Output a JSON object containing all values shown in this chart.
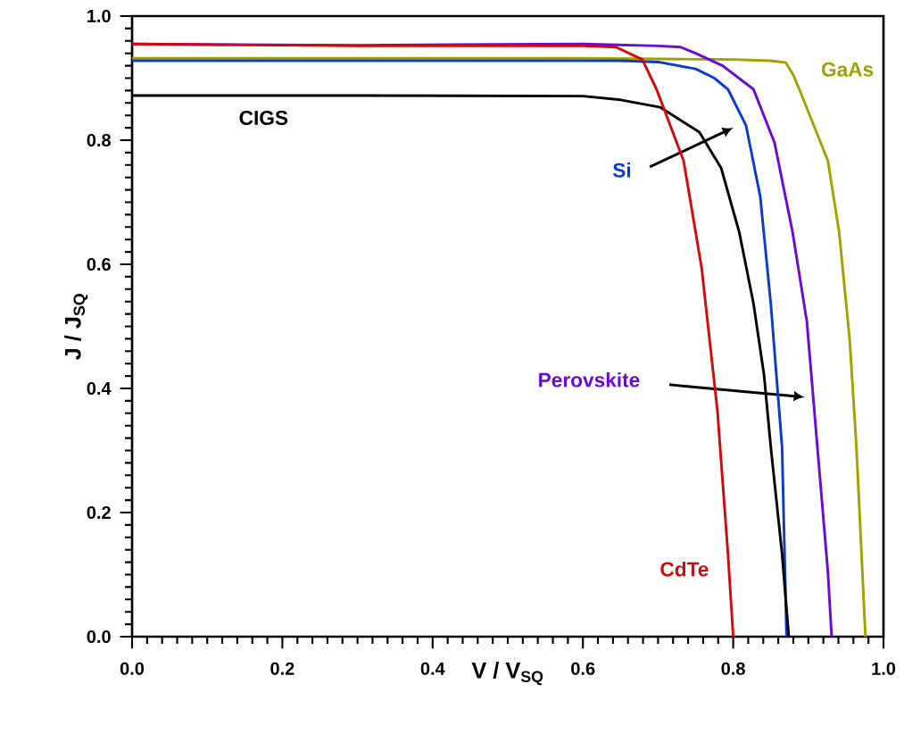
{
  "chart_data": {
    "type": "line",
    "xlabel": "V / V$_{SQ}$",
    "ylabel": "J / J$_{SQ}$",
    "xlim": [
      0,
      1
    ],
    "ylim": [
      0,
      1
    ],
    "xticks": [
      {
        "value": 0,
        "label": "0.0"
      },
      {
        "value": 0.2,
        "label": "0.2"
      },
      {
        "value": 0.4,
        "label": "0.4"
      },
      {
        "value": 0.6,
        "label": "0.6"
      },
      {
        "value": 0.8,
        "label": "0.8"
      },
      {
        "value": 1,
        "label": "1.0"
      }
    ],
    "yticks": [
      {
        "value": 0,
        "label": "0.0"
      },
      {
        "value": 0.2,
        "label": "0.2"
      },
      {
        "value": 0.4,
        "label": "0.4"
      },
      {
        "value": 0.6,
        "label": "0.6"
      },
      {
        "value": 0.8,
        "label": "0.8"
      },
      {
        "value": 1,
        "label": "1.0"
      }
    ],
    "series": [
      {
        "name": "GaAs",
        "color": "#a3a000",
        "x": [
          0,
          0.2,
          0.4,
          0.6,
          0.8,
          0.85,
          0.87,
          0.88,
          0.888,
          0.926,
          0.941,
          0.955,
          0.964,
          0.976
        ],
        "values": [
          0.932,
          0.932,
          0.932,
          0.932,
          0.93,
          0.928,
          0.925,
          0.905,
          0.882,
          0.767,
          0.652,
          0.479,
          0.306,
          0
        ]
      },
      {
        "name": "Perovskite",
        "color": "#6a0ad4",
        "x": [
          0,
          0.3,
          0.6,
          0.7,
          0.73,
          0.75,
          0.786,
          0.827,
          0.855,
          0.879,
          0.898,
          0.912,
          0.926,
          0.931
        ],
        "values": [
          0.955,
          0.953,
          0.955,
          0.952,
          0.95,
          0.94,
          0.92,
          0.882,
          0.796,
          0.652,
          0.508,
          0.306,
          0.105,
          0
        ]
      },
      {
        "name": "Si",
        "color": "#0a3ccc",
        "x": [
          0,
          0.3,
          0.65,
          0.7,
          0.75,
          0.775,
          0.793,
          0.817,
          0.836,
          0.85,
          0.865,
          0.871
        ],
        "values": [
          0.928,
          0.928,
          0.928,
          0.926,
          0.915,
          0.9,
          0.882,
          0.824,
          0.709,
          0.537,
          0.306,
          0
        ]
      },
      {
        "name": "CIGS",
        "color": "#000000",
        "x": [
          0,
          0.3,
          0.6,
          0.65,
          0.703,
          0.755,
          0.784,
          0.808,
          0.827,
          0.841,
          0.85,
          0.865,
          0.874
        ],
        "values": [
          0.872,
          0.872,
          0.871,
          0.865,
          0.853,
          0.813,
          0.755,
          0.652,
          0.537,
          0.422,
          0.306,
          0.134,
          0
        ]
      },
      {
        "name": "CdTe",
        "color": "#d40a0a",
        "x": [
          0,
          0.3,
          0.6,
          0.644,
          0.679,
          0.698,
          0.734,
          0.758,
          0.779,
          0.793,
          0.8
        ],
        "values": [
          0.955,
          0.952,
          0.952,
          0.95,
          0.93,
          0.882,
          0.767,
          0.594,
          0.364,
          0.134,
          0
        ]
      }
    ]
  }
}
